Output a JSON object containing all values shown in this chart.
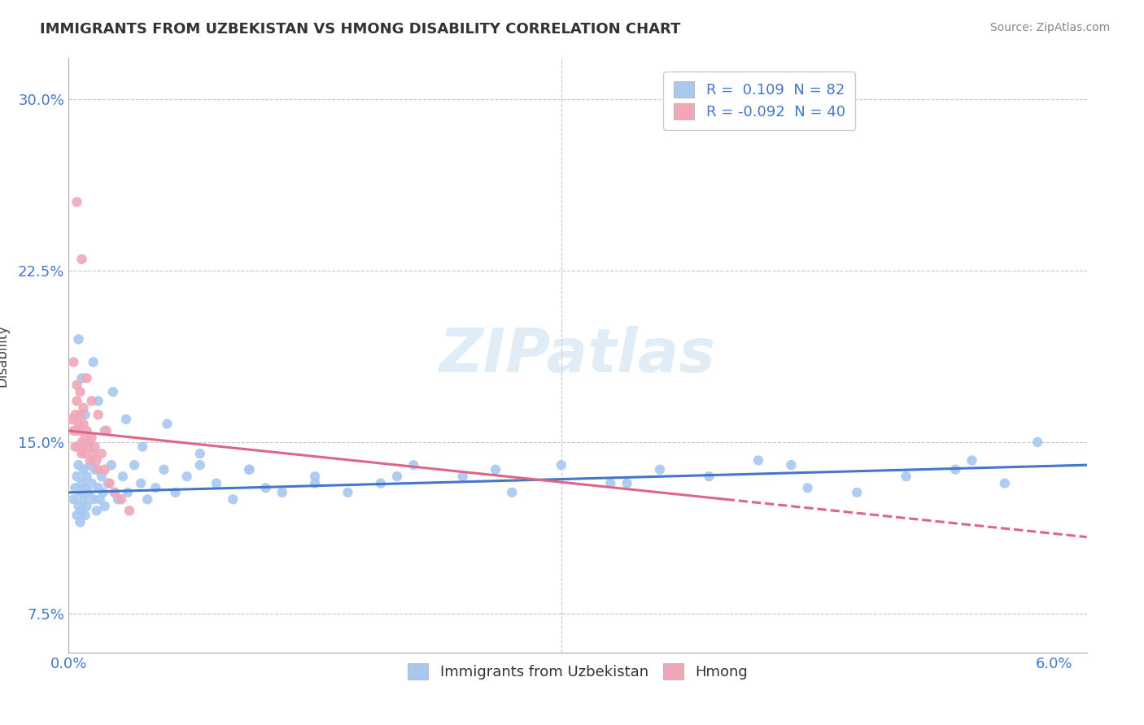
{
  "title": "IMMIGRANTS FROM UZBEKISTAN VS HMONG DISABILITY CORRELATION CHART",
  "source": "Source: ZipAtlas.com",
  "ylabel": "Disability",
  "xlim": [
    0.0,
    0.062
  ],
  "ylim": [
    0.058,
    0.318
  ],
  "xticks": [
    0.0,
    0.03,
    0.06
  ],
  "xticklabels": [
    "0.0%",
    "",
    "6.0%"
  ],
  "yticks": [
    0.075,
    0.15,
    0.225,
    0.3
  ],
  "yticklabels": [
    "7.5%",
    "15.0%",
    "22.5%",
    "30.0%"
  ],
  "r_uzbek": 0.109,
  "n_uzbek": 82,
  "r_hmong": -0.092,
  "n_hmong": 40,
  "color_uzbek": "#a8c8f0",
  "color_hmong": "#f0a8b8",
  "watermark": "ZIPatlas",
  "background_color": "#ffffff",
  "grid_color": "#c8c8c8",
  "uzbek_x": [
    0.0003,
    0.0004,
    0.0005,
    0.0005,
    0.0006,
    0.0006,
    0.0007,
    0.0007,
    0.0008,
    0.0008,
    0.0009,
    0.0009,
    0.001,
    0.001,
    0.0011,
    0.0011,
    0.0012,
    0.0013,
    0.0014,
    0.0015,
    0.0016,
    0.0017,
    0.0018,
    0.0019,
    0.002,
    0.0021,
    0.0022,
    0.0024,
    0.0026,
    0.0028,
    0.003,
    0.0033,
    0.0036,
    0.004,
    0.0044,
    0.0048,
    0.0053,
    0.0058,
    0.0065,
    0.0072,
    0.008,
    0.009,
    0.01,
    0.011,
    0.012,
    0.013,
    0.015,
    0.017,
    0.019,
    0.021,
    0.024,
    0.027,
    0.03,
    0.033,
    0.036,
    0.039,
    0.042,
    0.045,
    0.048,
    0.051,
    0.054,
    0.057,
    0.0006,
    0.0008,
    0.001,
    0.0012,
    0.0015,
    0.0018,
    0.0022,
    0.0027,
    0.0035,
    0.0045,
    0.006,
    0.008,
    0.011,
    0.015,
    0.02,
    0.026,
    0.034,
    0.044,
    0.055,
    0.059
  ],
  "uzbek_y": [
    0.125,
    0.13,
    0.118,
    0.135,
    0.122,
    0.14,
    0.128,
    0.115,
    0.132,
    0.12,
    0.138,
    0.125,
    0.13,
    0.118,
    0.135,
    0.122,
    0.128,
    0.14,
    0.132,
    0.125,
    0.138,
    0.12,
    0.13,
    0.125,
    0.135,
    0.128,
    0.122,
    0.132,
    0.14,
    0.128,
    0.125,
    0.135,
    0.128,
    0.14,
    0.132,
    0.125,
    0.13,
    0.138,
    0.128,
    0.135,
    0.14,
    0.132,
    0.125,
    0.138,
    0.13,
    0.128,
    0.135,
    0.128,
    0.132,
    0.14,
    0.135,
    0.128,
    0.14,
    0.132,
    0.138,
    0.135,
    0.142,
    0.13,
    0.128,
    0.135,
    0.138,
    0.132,
    0.195,
    0.178,
    0.162,
    0.15,
    0.185,
    0.168,
    0.155,
    0.172,
    0.16,
    0.148,
    0.158,
    0.145,
    0.138,
    0.132,
    0.135,
    0.138,
    0.132,
    0.14,
    0.142,
    0.15
  ],
  "hmong_x": [
    0.0002,
    0.0003,
    0.0004,
    0.0004,
    0.0005,
    0.0005,
    0.0006,
    0.0006,
    0.0007,
    0.0007,
    0.0008,
    0.0008,
    0.0009,
    0.0009,
    0.001,
    0.001,
    0.0011,
    0.0012,
    0.0013,
    0.0014,
    0.0015,
    0.0016,
    0.0017,
    0.0018,
    0.002,
    0.0022,
    0.0025,
    0.0028,
    0.0032,
    0.0037,
    0.0003,
    0.0005,
    0.0007,
    0.0009,
    0.0011,
    0.0014,
    0.0018,
    0.0023,
    0.0005,
    0.0008
  ],
  "hmong_y": [
    0.16,
    0.155,
    0.148,
    0.162,
    0.155,
    0.168,
    0.158,
    0.148,
    0.162,
    0.155,
    0.15,
    0.145,
    0.158,
    0.148,
    0.152,
    0.145,
    0.155,
    0.148,
    0.142,
    0.152,
    0.145,
    0.148,
    0.142,
    0.138,
    0.145,
    0.138,
    0.132,
    0.128,
    0.125,
    0.12,
    0.185,
    0.175,
    0.172,
    0.165,
    0.178,
    0.168,
    0.162,
    0.155,
    0.255,
    0.23
  ]
}
